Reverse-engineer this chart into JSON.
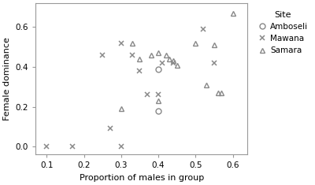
{
  "amboseli": {
    "x": [
      0.4,
      0.4
    ],
    "y": [
      0.39,
      0.18
    ],
    "marker": "o",
    "color": "#888888",
    "label": "Amboseli",
    "markersize": 5,
    "fillstyle": "none"
  },
  "mawana": {
    "x": [
      0.1,
      0.17,
      0.25,
      0.27,
      0.3,
      0.3,
      0.33,
      0.35,
      0.37,
      0.4,
      0.41,
      0.44,
      0.52,
      0.55
    ],
    "y": [
      0.0,
      0.0,
      0.46,
      0.09,
      0.0,
      0.52,
      0.46,
      0.38,
      0.26,
      0.26,
      0.42,
      0.42,
      0.59,
      0.42
    ],
    "marker": "x",
    "color": "#888888",
    "label": "Mawana",
    "markersize": 5
  },
  "samara": {
    "x": [
      0.3,
      0.33,
      0.35,
      0.38,
      0.4,
      0.4,
      0.42,
      0.43,
      0.44,
      0.45,
      0.5,
      0.53,
      0.55,
      0.56,
      0.57,
      0.6
    ],
    "y": [
      0.19,
      0.52,
      0.44,
      0.46,
      0.47,
      0.23,
      0.46,
      0.44,
      0.43,
      0.41,
      0.52,
      0.31,
      0.51,
      0.27,
      0.27,
      0.67
    ],
    "marker": "^",
    "color": "#888888",
    "label": "Samara",
    "markersize": 5,
    "fillstyle": "none"
  },
  "xlabel": "Proportion of males in group",
  "ylabel": "Female dominance",
  "xlim": [
    0.07,
    0.64
  ],
  "ylim": [
    -0.04,
    0.72
  ],
  "xticks": [
    0.1,
    0.2,
    0.3,
    0.4,
    0.5,
    0.6
  ],
  "yticks": [
    0.0,
    0.2,
    0.4,
    0.6
  ],
  "legend_title": "Site",
  "bg_color": "#ffffff",
  "spine_color": "#999999"
}
